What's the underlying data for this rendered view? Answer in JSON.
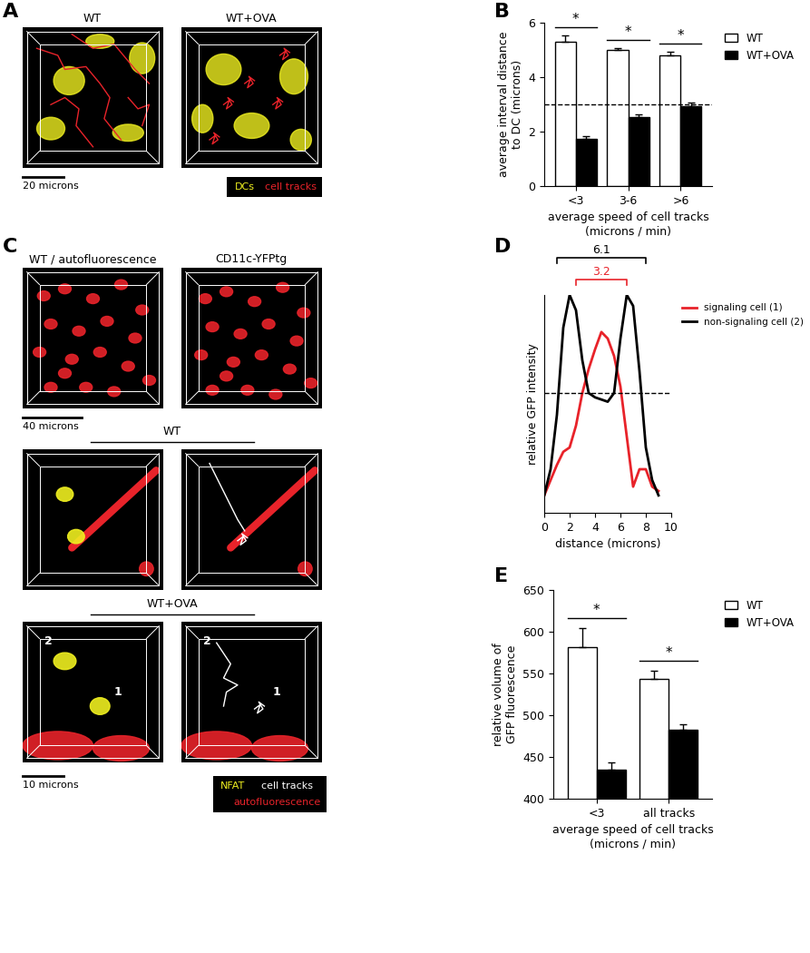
{
  "images": [
    {
      "panel": "A",
      "views": [
        {
          "title": "WT"
        },
        {
          "title": "WT+OVA"
        }
      ],
      "scale_bar": "20 microns",
      "legend": [
        {
          "label": "DCs",
          "color": "#f0f020"
        },
        {
          "label": "cell tracks",
          "color": "#e8232a"
        }
      ]
    },
    {
      "panel": "C",
      "top_row": {
        "titles": [
          "WT / autofluorescence",
          "CD11c-YFPtg"
        ],
        "scale_bar": "40 microns"
      },
      "groups": [
        {
          "title": "WT",
          "cell_labels": []
        },
        {
          "title": "WT+OVA",
          "cell_labels": [
            "2",
            "1"
          ]
        }
      ],
      "scale_bar": "10 microns",
      "legend": [
        {
          "label": "NFAT",
          "color": "#f0f020"
        },
        {
          "label": "cell tracks",
          "color": "#ffffff"
        },
        {
          "label": "autofluorescence",
          "color": "#e8232a"
        }
      ]
    }
  ],
  "chart_data": [
    {
      "panel": "B",
      "type": "bar",
      "categories": [
        "<3",
        "3-6",
        ">6"
      ],
      "x_label": "average speed of cell tracks\n(microns / min)",
      "y_label": "average interval distance\nto DC (microns)",
      "ylim": [
        0,
        6
      ],
      "yticks": [
        0,
        2,
        4,
        6
      ],
      "reference_line": 3,
      "significance": [
        "*",
        "*",
        "*"
      ],
      "legend": "upper left",
      "series": [
        {
          "name": "WT",
          "color": "#ffffff",
          "values": [
            5.3,
            5.0,
            4.8
          ],
          "errors": [
            0.25,
            0.08,
            0.15
          ]
        },
        {
          "name": "WT+OVA",
          "color": "#000000",
          "values": [
            1.75,
            2.55,
            2.95
          ],
          "errors": [
            0.07,
            0.07,
            0.1
          ]
        }
      ]
    },
    {
      "panel": "D",
      "type": "line",
      "x": [
        0,
        0.5,
        1,
        1.5,
        2,
        2.5,
        3,
        3.5,
        4,
        4.5,
        5,
        5.5,
        6,
        6.5,
        7,
        7.5,
        8,
        8.5,
        9
      ],
      "x_label": "distance (microns)",
      "y_label": "relative GFP intensity",
      "xlim": [
        0,
        10
      ],
      "xticks": [
        0,
        2,
        4,
        6,
        8,
        10
      ],
      "ylim": [
        0,
        1
      ],
      "yticks": [],
      "tick_labels": "x",
      "reference_line": 0.55,
      "legend": "upper left",
      "intervals": [
        {
          "label": "6.1",
          "start": 1,
          "end": 8,
          "color": "#000000"
        },
        {
          "label": "3.2",
          "start": 2.5,
          "end": 6.5,
          "color": "#e8232a"
        }
      ],
      "series": [
        {
          "name": "signaling cell (1)",
          "color": "#e8232a",
          "values": [
            0.08,
            0.15,
            0.22,
            0.28,
            0.3,
            0.4,
            0.55,
            0.66,
            0.75,
            0.83,
            0.8,
            0.72,
            0.58,
            0.35,
            0.12,
            0.2,
            0.2,
            0.12,
            0.1
          ]
        },
        {
          "name": "non-signaling cell (2)",
          "color": "#000000",
          "values": [
            0.08,
            0.2,
            0.45,
            0.85,
            1.0,
            0.93,
            0.7,
            0.55,
            0.53,
            0.52,
            0.51,
            0.55,
            0.8,
            1.0,
            0.95,
            0.65,
            0.3,
            0.15,
            0.08
          ]
        }
      ]
    },
    {
      "panel": "E",
      "type": "bar",
      "categories": [
        "<3",
        "all tracks"
      ],
      "x_label": "average speed of cell tracks\n(microns / min)",
      "y_label": "relative volume of\nGFP fluorescence",
      "ylim": [
        400,
        650
      ],
      "yticks": [
        400,
        450,
        500,
        550,
        600,
        650
      ],
      "significance": [
        "*",
        "*"
      ],
      "legend": "upper left",
      "series": [
        {
          "name": "WT",
          "color": "#ffffff",
          "values": [
            582,
            543
          ],
          "errors": [
            22,
            10
          ]
        },
        {
          "name": "WT+OVA",
          "color": "#000000",
          "values": [
            435,
            483
          ],
          "errors": [
            9,
            6
          ]
        }
      ]
    }
  ]
}
